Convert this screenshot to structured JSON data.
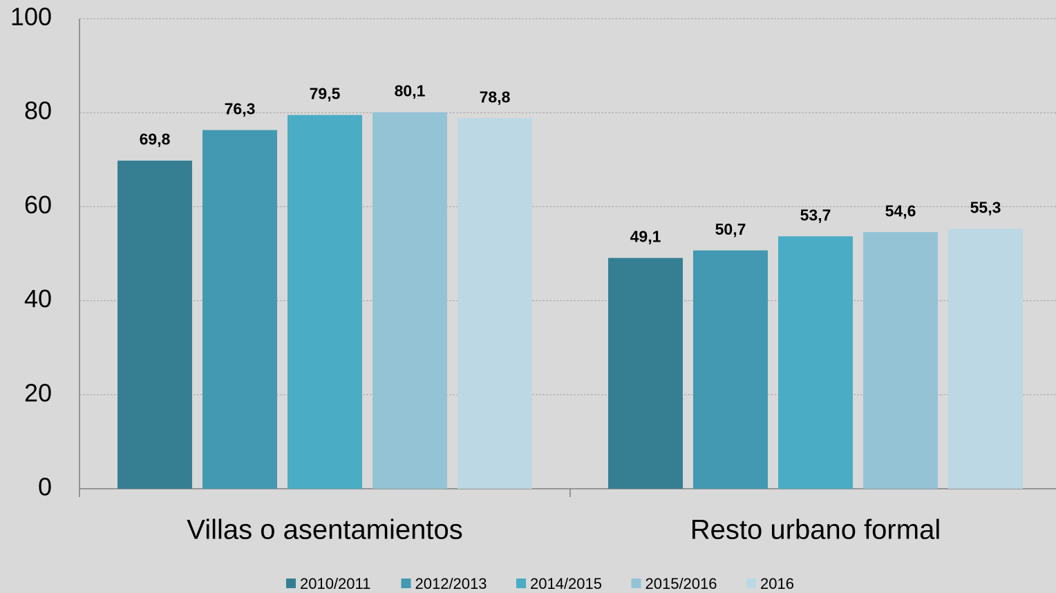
{
  "chart_data": {
    "type": "bar",
    "categories": [
      "Villas o asentamientos",
      "Resto urbano formal"
    ],
    "series": [
      {
        "name": "2010/2011",
        "color": "#367f93",
        "values": [
          69.8,
          49.1
        ],
        "value_labels": [
          "69,8",
          "49,1"
        ]
      },
      {
        "name": "2012/2013",
        "color": "#4299b1",
        "values": [
          76.3,
          50.7
        ],
        "value_labels": [
          "76,3",
          "50,7"
        ]
      },
      {
        "name": "2014/2015",
        "color": "#4aacc5",
        "values": [
          79.5,
          53.7
        ],
        "value_labels": [
          "79,5",
          "53,7"
        ]
      },
      {
        "name": "2015/2016",
        "color": "#93c3d5",
        "values": [
          80.1,
          54.6
        ],
        "value_labels": [
          "80,1",
          "54,6"
        ]
      },
      {
        "name": "2016",
        "color": "#bcd8e4",
        "values": [
          78.8,
          55.3
        ],
        "value_labels": [
          "78,8",
          "55,3"
        ]
      }
    ],
    "ylim": [
      0,
      100
    ],
    "yticks": [
      0,
      20,
      40,
      60,
      80,
      100
    ],
    "grid": true,
    "legend": "bottom"
  }
}
